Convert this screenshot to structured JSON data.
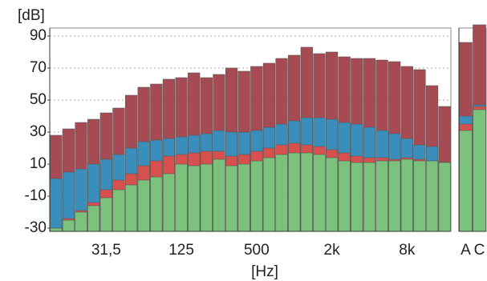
{
  "chart_data": [
    {
      "type": "bar",
      "y_label": "[dB]",
      "x_label": "[Hz]",
      "ylim": [
        -32,
        95
      ],
      "yticks": [
        -30,
        -10,
        10,
        30,
        50,
        70,
        90
      ],
      "grid": true,
      "categories": [
        null,
        null,
        null,
        null,
        "31,5",
        null,
        null,
        null,
        null,
        null,
        "125",
        null,
        null,
        null,
        null,
        null,
        "500",
        null,
        null,
        null,
        null,
        null,
        "2k",
        null,
        null,
        null,
        null,
        null,
        "8k",
        null,
        null,
        null
      ],
      "series": [
        {
          "color": "#a64b54",
          "values": [
            28,
            32,
            36,
            38,
            42,
            45,
            53,
            58,
            60,
            63,
            64,
            67,
            64,
            66,
            70,
            68,
            71,
            73,
            76,
            78,
            83,
            79,
            80,
            77,
            76,
            76,
            75,
            74,
            71,
            69,
            59,
            46
          ]
        },
        {
          "color": "#3a8ebb",
          "values": [
            1,
            5,
            7,
            10,
            13,
            16,
            20,
            24,
            25,
            26,
            27,
            28,
            29,
            31,
            30,
            30,
            31,
            33,
            35,
            37,
            39,
            39,
            38,
            36,
            35,
            33,
            31,
            29,
            26,
            22,
            21,
            11
          ]
        },
        {
          "color": "#d6504d",
          "values": [
            -30,
            -24,
            -19,
            -14,
            -6,
            0,
            4,
            9,
            12,
            15,
            16,
            17,
            18,
            18,
            15,
            16,
            18,
            20,
            22,
            23,
            22,
            21,
            19,
            17,
            15,
            14,
            14,
            13,
            14,
            13,
            12,
            11
          ]
        },
        {
          "color": "#7cc27c",
          "values": [
            -30,
            -25,
            -20,
            -16,
            -11,
            -6,
            -3,
            0,
            2,
            4,
            10,
            9,
            10,
            13,
            9,
            10,
            12,
            14,
            16,
            17,
            17,
            16,
            14,
            12,
            11,
            11,
            12,
            12,
            13,
            12,
            12,
            11
          ]
        }
      ]
    },
    {
      "type": "bar",
      "ylim": [
        -32,
        95
      ],
      "categories": [
        "A",
        "C"
      ],
      "series": [
        {
          "color": "#a64b54",
          "values": [
            86,
            97
          ]
        },
        {
          "color": "#3a8ebb",
          "values": [
            40,
            47
          ]
        },
        {
          "color": "#d6504d",
          "values": [
            35,
            46
          ]
        },
        {
          "color": "#7cc27c",
          "values": [
            31,
            44
          ]
        }
      ]
    }
  ]
}
